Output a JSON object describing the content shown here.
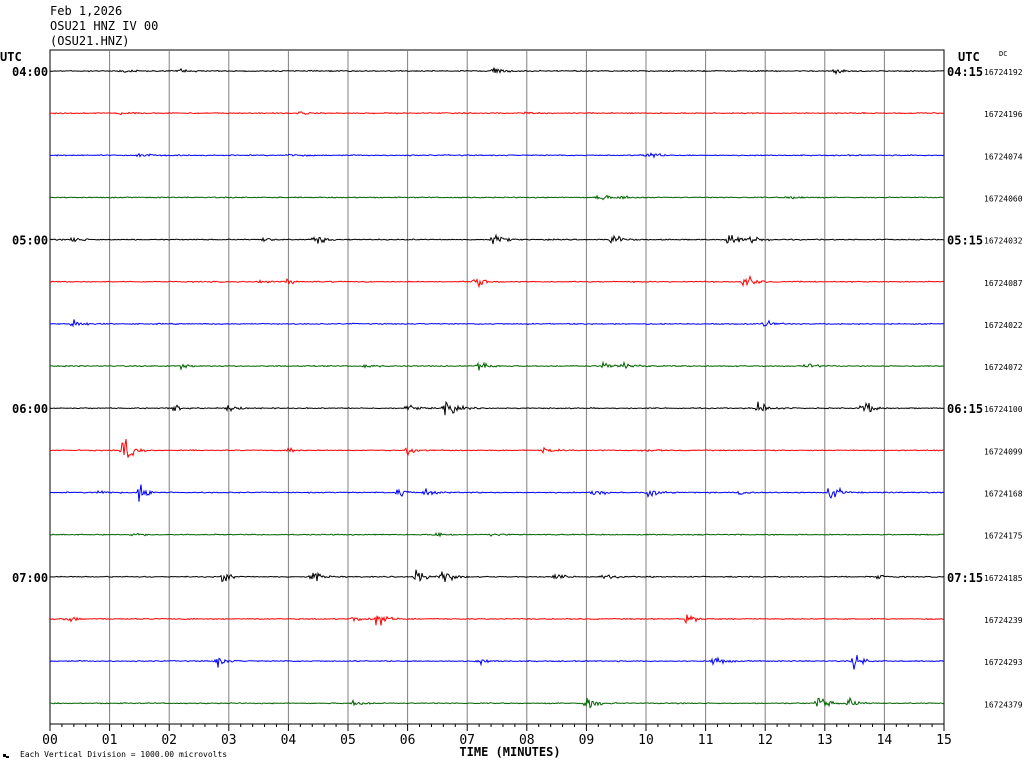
{
  "header": {
    "date": "Feb 1,2026",
    "station": "OSU21 HNZ IV 00",
    "channel": "(OSU21.HNZ)"
  },
  "labels": {
    "utc_left": "UTC",
    "utc_right": "UTC",
    "dc": "DC",
    "xlabel": "TIME (MINUTES)",
    "scale_note": "Each Vertical Division = 1000.00 microvolts"
  },
  "colors": [
    "#000000",
    "#ff0000",
    "#0000ff",
    "#006400"
  ],
  "chart_data": {
    "type": "line",
    "xlabel": "TIME (MINUTES)",
    "xlim": [
      0,
      15
    ],
    "x_ticks": [
      "00",
      "01",
      "02",
      "03",
      "04",
      "05",
      "06",
      "07",
      "08",
      "09",
      "10",
      "11",
      "12",
      "13",
      "14",
      "15"
    ],
    "grid": true,
    "rows": [
      {
        "left": "04:00",
        "right": "04:15",
        "count": "16724192"
      },
      {
        "left": "",
        "right": "",
        "count": "16724196"
      },
      {
        "left": "",
        "right": "",
        "count": "16724074"
      },
      {
        "left": "",
        "right": "",
        "count": "16724060"
      },
      {
        "left": "05:00",
        "right": "05:15",
        "count": "16724032"
      },
      {
        "left": "",
        "right": "",
        "count": "16724087"
      },
      {
        "left": "",
        "right": "",
        "count": "16724022"
      },
      {
        "left": "",
        "right": "",
        "count": "16724072"
      },
      {
        "left": "06:00",
        "right": "06:15",
        "count": "16724100"
      },
      {
        "left": "",
        "right": "",
        "count": "16724099"
      },
      {
        "left": "",
        "right": "",
        "count": "16724168"
      },
      {
        "left": "",
        "right": "",
        "count": "16724175"
      },
      {
        "left": "07:00",
        "right": "07:15",
        "count": "16724185"
      },
      {
        "left": "",
        "right": "",
        "count": "16724239"
      },
      {
        "left": "",
        "right": "",
        "count": "16724293"
      },
      {
        "left": "",
        "right": "",
        "count": "16724379"
      }
    ],
    "events": [
      [
        [
          1.2,
          0.35
        ],
        [
          2.2,
          0.3
        ],
        [
          7.45,
          0.9
        ],
        [
          13.2,
          0.5
        ]
      ],
      [
        [
          1.2,
          0.3
        ],
        [
          4.2,
          0.2
        ],
        [
          8.0,
          0.15
        ]
      ],
      [
        [
          1.5,
          0.5
        ],
        [
          4.0,
          0.4
        ],
        [
          10.0,
          0.9
        ]
      ],
      [
        [
          9.2,
          0.7
        ],
        [
          9.6,
          0.4
        ],
        [
          12.4,
          0.3
        ]
      ],
      [
        [
          0.4,
          0.5
        ],
        [
          3.6,
          0.4
        ],
        [
          4.45,
          1.1
        ],
        [
          7.45,
          1.0
        ],
        [
          9.45,
          1.0
        ],
        [
          11.4,
          1.4
        ],
        [
          11.8,
          0.7
        ]
      ],
      [
        [
          3.5,
          0.5
        ],
        [
          4.0,
          0.4
        ],
        [
          7.15,
          1.0
        ],
        [
          11.65,
          1.6
        ]
      ],
      [
        [
          0.4,
          0.8
        ],
        [
          12.0,
          0.6
        ]
      ],
      [
        [
          2.2,
          0.5
        ],
        [
          5.3,
          0.3
        ],
        [
          7.2,
          0.9
        ],
        [
          9.3,
          0.6
        ],
        [
          9.65,
          0.9
        ],
        [
          12.7,
          0.5
        ]
      ],
      [
        [
          2.1,
          0.5
        ],
        [
          3.0,
          0.5
        ],
        [
          6.0,
          0.6
        ],
        [
          6.65,
          2.0
        ],
        [
          11.9,
          1.2
        ],
        [
          13.65,
          1.4
        ]
      ],
      [
        [
          1.25,
          2.2
        ],
        [
          4.0,
          0.4
        ],
        [
          6.0,
          0.8
        ],
        [
          8.3,
          0.5
        ],
        [
          10.0,
          0.3
        ]
      ],
      [
        [
          0.8,
          0.5
        ],
        [
          1.5,
          1.7
        ],
        [
          5.85,
          0.9
        ],
        [
          6.3,
          0.5
        ],
        [
          9.1,
          0.9
        ],
        [
          10.05,
          0.9
        ],
        [
          11.6,
          0.6
        ],
        [
          13.1,
          1.5
        ]
      ],
      [
        [
          1.4,
          0.3
        ],
        [
          6.5,
          0.5
        ],
        [
          7.4,
          0.3
        ]
      ],
      [
        [
          2.9,
          0.9
        ],
        [
          4.4,
          0.9
        ],
        [
          6.15,
          1.2
        ],
        [
          6.6,
          1.2
        ],
        [
          8.5,
          0.5
        ],
        [
          9.3,
          0.5
        ],
        [
          13.9,
          0.3
        ]
      ],
      [
        [
          0.3,
          0.6
        ],
        [
          5.1,
          0.5
        ],
        [
          5.5,
          1.6
        ],
        [
          10.7,
          0.8
        ]
      ],
      [
        [
          2.8,
          0.9
        ],
        [
          7.2,
          0.5
        ],
        [
          11.15,
          0.9
        ],
        [
          13.5,
          1.2
        ]
      ],
      [
        [
          5.1,
          0.6
        ],
        [
          9.0,
          1.6
        ],
        [
          12.9,
          1.3
        ],
        [
          13.4,
          0.8
        ]
      ]
    ]
  }
}
